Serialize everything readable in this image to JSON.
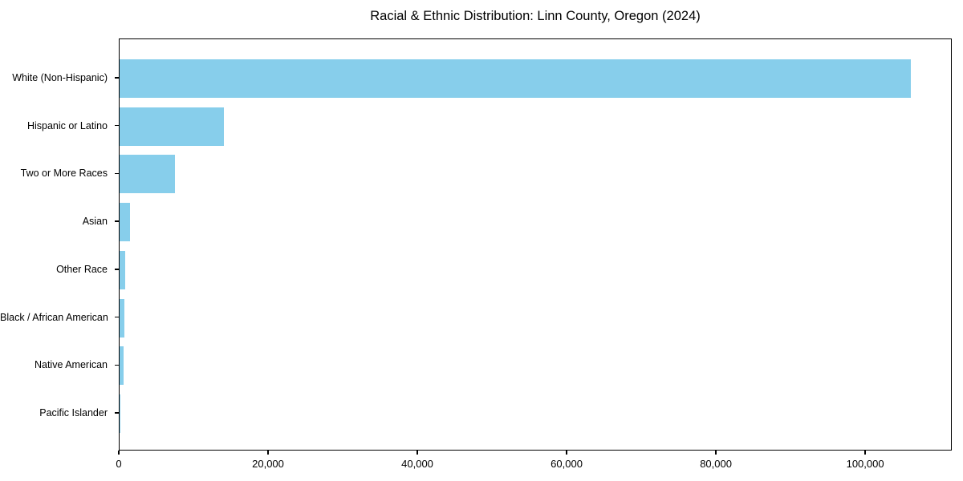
{
  "title": "Racial & Ethnic Distribution: Linn County, Oregon (2024)",
  "colors": {
    "bar": "#87CEEB",
    "axis": "#000000",
    "background": "#FFFFFF",
    "text": "#000000"
  },
  "chart_data": {
    "type": "bar",
    "orientation": "horizontal",
    "title": "Racial & Ethnic Distribution: Linn County, Oregon (2024)",
    "categories": [
      "White (Non-Hispanic)",
      "Hispanic or Latino",
      "Two or More Races",
      "Asian",
      "Other Race",
      "Black / African American",
      "Native American",
      "Pacific Islander"
    ],
    "values": [
      106000,
      14000,
      7400,
      1400,
      750,
      650,
      560,
      120
    ],
    "xlabel": "",
    "ylabel": "",
    "xlim": [
      0,
      111600
    ],
    "x_ticks": [
      0,
      20000,
      40000,
      60000,
      80000,
      100000
    ],
    "x_tick_labels": [
      "0",
      "20,000",
      "40,000",
      "60,000",
      "80,000",
      "100,000"
    ],
    "grid": false,
    "legend": "none",
    "bar_color": "#87CEEB"
  }
}
